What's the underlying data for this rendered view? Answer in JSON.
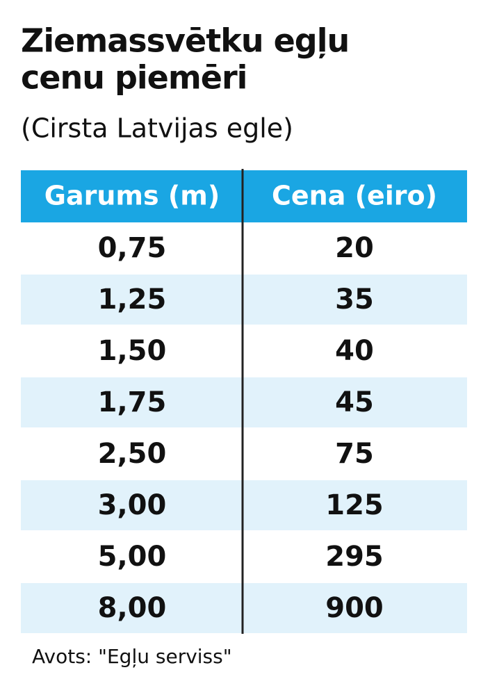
{
  "title": [
    "Ziemassvētku egļu",
    "cenu piemēri"
  ],
  "subtitle": "(Cirsta Latvijas egle)",
  "table": {
    "header": [
      "Garums (m)",
      "Cena (eiro)"
    ],
    "rows": [
      [
        "0,75",
        "20"
      ],
      [
        "1,25",
        "35"
      ],
      [
        "1,50",
        "40"
      ],
      [
        "1,75",
        "45"
      ],
      [
        "2,50",
        "75"
      ],
      [
        "3,00",
        "125"
      ],
      [
        "5,00",
        "295"
      ],
      [
        "8,00",
        "900"
      ]
    ]
  },
  "source": "Avots: \"Egļu serviss\""
}
